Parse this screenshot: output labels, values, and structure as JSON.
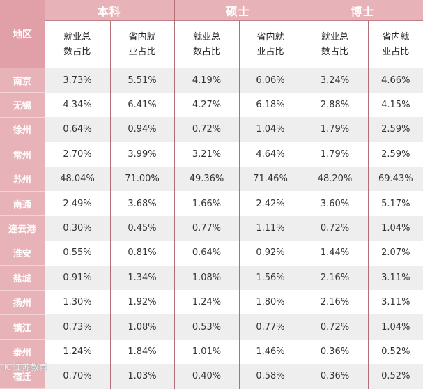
{
  "header": {
    "region": "地区",
    "groups": [
      "本科",
      "硕士",
      "博士"
    ],
    "subcolumns": [
      "就业总\n数占比",
      "省内就\n业占比"
    ]
  },
  "rows": [
    {
      "region": "南京",
      "values": [
        "3.73%",
        "5.51%",
        "4.19%",
        "6.06%",
        "3.24%",
        "4.66%"
      ]
    },
    {
      "region": "无锡",
      "values": [
        "4.34%",
        "6.41%",
        "4.27%",
        "6.18%",
        "2.88%",
        "4.15%"
      ]
    },
    {
      "region": "徐州",
      "values": [
        "0.64%",
        "0.94%",
        "0.72%",
        "1.04%",
        "1.79%",
        "2.59%"
      ]
    },
    {
      "region": "常州",
      "values": [
        "2.70%",
        "3.99%",
        "3.21%",
        "4.64%",
        "1.79%",
        "2.59%"
      ]
    },
    {
      "region": "苏州",
      "values": [
        "48.04%",
        "71.00%",
        "49.36%",
        "71.46%",
        "48.20%",
        "69.43%"
      ]
    },
    {
      "region": "南通",
      "values": [
        "2.49%",
        "3.68%",
        "1.66%",
        "2.42%",
        "3.60%",
        "5.17%"
      ]
    },
    {
      "region": "连云港",
      "values": [
        "0.30%",
        "0.45%",
        "0.77%",
        "1.11%",
        "0.72%",
        "1.04%"
      ]
    },
    {
      "region": "淮安",
      "values": [
        "0.55%",
        "0.81%",
        "0.64%",
        "0.92%",
        "1.44%",
        "2.07%"
      ]
    },
    {
      "region": "盐城",
      "values": [
        "0.91%",
        "1.34%",
        "1.08%",
        "1.56%",
        "2.16%",
        "3.11%"
      ]
    },
    {
      "region": "扬州",
      "values": [
        "1.30%",
        "1.92%",
        "1.24%",
        "1.80%",
        "2.16%",
        "3.11%"
      ]
    },
    {
      "region": "镇江",
      "values": [
        "0.73%",
        "1.08%",
        "0.53%",
        "0.77%",
        "0.72%",
        "1.04%"
      ]
    },
    {
      "region": "泰州",
      "values": [
        "1.24%",
        "1.84%",
        "1.01%",
        "1.46%",
        "0.36%",
        "0.52%"
      ]
    },
    {
      "region": "宿迁",
      "values": [
        "0.70%",
        "1.03%",
        "0.40%",
        "0.58%",
        "0.36%",
        "0.52%"
      ]
    }
  ],
  "watermark": "K 江苏教育",
  "colors": {
    "header_pink": "#e8b3b8",
    "region_pink": "#e1a0a7",
    "divider": "#b26f77",
    "stripe": "#eeeeee"
  }
}
